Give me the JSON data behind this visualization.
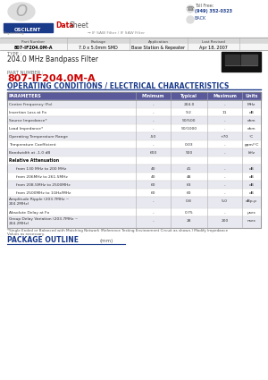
{
  "header_part": "807-IF204.0M-A",
  "header_package": "7.0 x 5.0mm SMD",
  "header_application": "Base Station & Repeater",
  "header_date": "Apr 18, 2007",
  "type_label": "TYPE :",
  "type_value": "204.0 MHz Bandpass Filter",
  "part_label": "PART NUMBER :",
  "part_value": "807-IF204.0M-A",
  "section_title": "OPERATING CONDITIONS / ELECTRICAL CHARACTERISTICS",
  "table_headers": [
    "PARAMETERS",
    "Minimum",
    "Typical",
    "Maximum",
    "Units"
  ],
  "table_rows": [
    [
      "Center Frequency (Fo)",
      "-",
      "204.0",
      "-",
      "MHz"
    ],
    [
      "Insertion Loss at Fo",
      "-",
      "9.2",
      "11",
      "dB"
    ],
    [
      "Source Impedance*",
      "-",
      "50/500",
      "-",
      "ohm"
    ],
    [
      "Load Impedance*",
      "-",
      "50/1000",
      "-",
      "ohm"
    ],
    [
      "Operating Temperature Range",
      "-50",
      "",
      "+70",
      "°C"
    ],
    [
      "Temperature Coefficient",
      "-",
      "0.03",
      "-",
      "ppm/°C"
    ],
    [
      "Bandwidth at -1.0 dB",
      "600",
      "900",
      "-",
      "kHz"
    ],
    [
      "Relative Attenuation",
      "",
      "",
      "",
      ""
    ],
    [
      "from 130 MHz to 200 MHz",
      "40",
      "41",
      "-",
      "dB"
    ],
    [
      "from 206MHz to 261.5MHz",
      "40",
      "48",
      "-",
      "dB"
    ],
    [
      "from 208.5MHz to 2500MHz",
      "60",
      "63",
      "-",
      "dB"
    ],
    [
      "from 2500MHz to 1GHz/MHz",
      "60",
      "60",
      "-",
      "dB"
    ],
    [
      "Amplitude Ripple (203.7MHz ~\n204.2MHz)",
      "-",
      "0.8",
      "5.0",
      "dBp-p"
    ],
    [
      "Absolute Delay at Fo",
      "-",
      "0.75",
      "-",
      "μsec"
    ],
    [
      "Group Delay Variation (203.7MHz ~\n204.2MHz)",
      "-",
      "28",
      "200",
      "nsec"
    ]
  ],
  "footnote1": "*Single Ended or Balanced with Matching Network (Reference Testing Environment Circuit as shown.) Modify Impedance",
  "footnote2": "Values as necessary.",
  "bg_color": "#ffffff",
  "table_header_bg": "#5a5a9a",
  "section_title_color": "#1a3a8a",
  "part_color": "#cc0000",
  "oscilent_blue": "#1a3a8a",
  "oscilent_red": "#cc0000",
  "toll_free": "Toll Free:",
  "phone": "(949) 352-0323",
  "back_text": "BACK",
  "saw_text": "→ IF SAW Filter / IF SAW Filter",
  "col_part_num": "Part Number",
  "col_package": "Package",
  "col_application": "Application",
  "col_last_rev": "Last Revised"
}
